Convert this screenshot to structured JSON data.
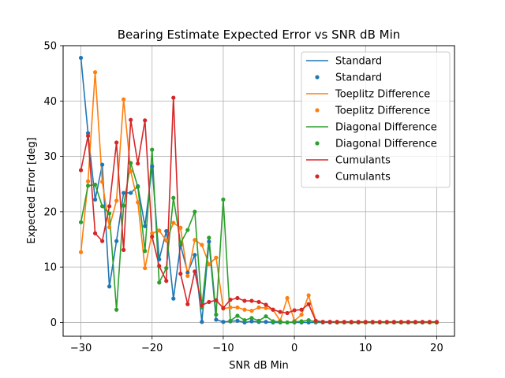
{
  "chart_data": {
    "type": "line",
    "title": "Bearing Estimate Expected Error vs SNR dB Min",
    "xlabel": "SNR dB Min",
    "ylabel": "Expected Error [deg]",
    "xlim": [
      -32.5,
      22.5
    ],
    "ylim": [
      -2.5,
      50
    ],
    "xticks": [
      -30,
      -20,
      -10,
      0,
      10,
      20
    ],
    "xtick_labels": [
      "−30",
      "−20",
      "−10",
      "0",
      "10",
      "20"
    ],
    "yticks": [
      0,
      10,
      20,
      30,
      40,
      50
    ],
    "ytick_labels": [
      "0",
      "10",
      "20",
      "30",
      "40",
      "50"
    ],
    "grid": true,
    "legend_placement": "top-right",
    "x": [
      -30,
      -29,
      -28,
      -27,
      -26,
      -25,
      -24,
      -23,
      -22,
      -21,
      -20,
      -19,
      -18,
      -17,
      -16,
      -15,
      -14,
      -13,
      -12,
      -11,
      -10,
      -9,
      -8,
      -7,
      -6,
      -5,
      -4,
      -3,
      -2,
      -1,
      0,
      1,
      2,
      3,
      4,
      5,
      6,
      7,
      8,
      9,
      10,
      11,
      12,
      13,
      14,
      15,
      16,
      17,
      18,
      19,
      20
    ],
    "series": [
      {
        "name": "Standard",
        "color": "#1f77b4",
        "values": [
          47.8,
          34.2,
          22.2,
          28.5,
          6.5,
          14.7,
          23.4,
          23.4,
          24.6,
          17.4,
          28.2,
          11.4,
          16.5,
          4.3,
          14.0,
          9.0,
          12.2,
          0.1,
          14.6,
          0.5,
          0.1,
          0.2,
          0.3,
          0.0,
          0.2,
          0.1,
          0.1,
          0.0,
          0.0,
          0.0,
          0.0,
          0.0,
          0.0,
          0.0,
          0.0,
          0.0,
          0.0,
          0.0,
          0.0,
          0.0,
          0.0,
          0.0,
          0.0,
          0.0,
          0.0,
          0.0,
          0.0,
          0.0,
          0.0,
          0.0,
          0.0
        ]
      },
      {
        "name": "Toeplitz Difference",
        "color": "#ff7f0e",
        "values": [
          12.7,
          25.5,
          45.2,
          25.4,
          17.2,
          22.0,
          40.3,
          27.3,
          21.7,
          9.8,
          16.1,
          16.6,
          14.8,
          18.0,
          17.1,
          8.4,
          14.9,
          14.0,
          10.5,
          11.7,
          2.5,
          2.7,
          2.7,
          2.3,
          2.1,
          2.7,
          2.6,
          2.3,
          0.3,
          4.4,
          0.3,
          1.4,
          4.9,
          0.3,
          0.1,
          0.1,
          0.1,
          0.0,
          0.0,
          0.0,
          0.0,
          0.0,
          0.0,
          0.0,
          0.0,
          0.0,
          0.0,
          0.0,
          0.0,
          0.0,
          0.0
        ]
      },
      {
        "name": "Diagonal Difference",
        "color": "#2ca02c",
        "values": [
          18.1,
          24.7,
          24.9,
          21.0,
          19.7,
          2.3,
          21.1,
          28.8,
          24.5,
          12.9,
          31.2,
          7.2,
          9.8,
          22.5,
          14.3,
          16.7,
          20.0,
          2.7,
          15.3,
          1.4,
          22.2,
          0.3,
          1.2,
          0.4,
          0.8,
          0.3,
          1.1,
          0.2,
          0.1,
          0.0,
          0.1,
          0.2,
          0.4,
          0.1,
          0.1,
          0.1,
          0.0,
          0.0,
          0.0,
          0.0,
          0.0,
          0.0,
          0.0,
          0.0,
          0.0,
          0.0,
          0.0,
          0.0,
          0.0,
          0.0,
          0.0
        ]
      },
      {
        "name": "Cumulants",
        "color": "#d62728",
        "values": [
          27.5,
          33.7,
          16.1,
          14.7,
          21.0,
          32.5,
          13.1,
          36.6,
          28.7,
          36.5,
          15.5,
          10.2,
          7.5,
          40.6,
          8.8,
          3.3,
          9.2,
          3.1,
          3.7,
          4.0,
          2.6,
          4.1,
          4.4,
          3.9,
          3.9,
          3.7,
          3.2,
          2.3,
          1.9,
          1.7,
          2.2,
          2.3,
          3.3,
          0.3,
          0.1,
          0.1,
          0.1,
          0.1,
          0.1,
          0.1,
          0.1,
          0.1,
          0.1,
          0.1,
          0.1,
          0.1,
          0.1,
          0.1,
          0.1,
          0.1,
          0.1
        ]
      }
    ],
    "legend_entries": [
      {
        "label": "Standard",
        "kind": "line",
        "color": "#1f77b4"
      },
      {
        "label": "Standard",
        "kind": "marker",
        "color": "#1f77b4"
      },
      {
        "label": "Toeplitz Difference",
        "kind": "line",
        "color": "#ff7f0e"
      },
      {
        "label": "Toeplitz Difference",
        "kind": "marker",
        "color": "#ff7f0e"
      },
      {
        "label": "Diagonal Difference",
        "kind": "line",
        "color": "#2ca02c"
      },
      {
        "label": "Diagonal Difference",
        "kind": "marker",
        "color": "#2ca02c"
      },
      {
        "label": "Cumulants",
        "kind": "line",
        "color": "#d62728"
      },
      {
        "label": "Cumulants",
        "kind": "marker",
        "color": "#d62728"
      }
    ]
  }
}
